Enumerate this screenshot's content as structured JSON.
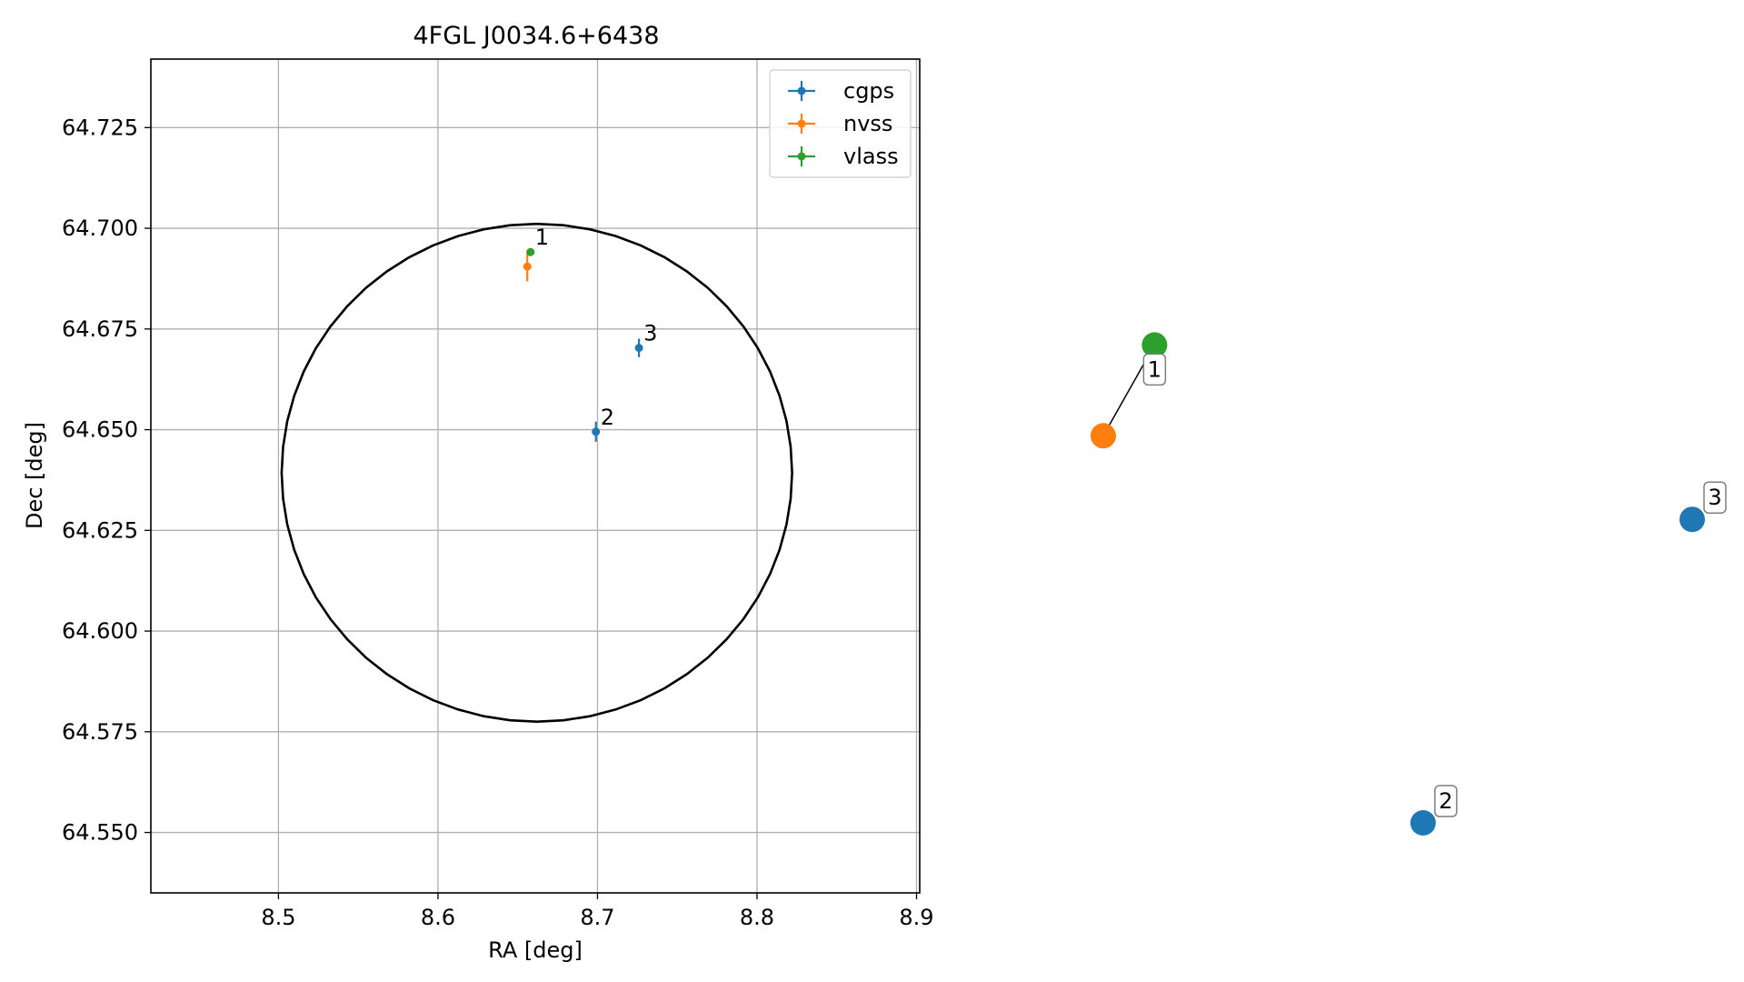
{
  "chart_data": [
    {
      "type": "scatter",
      "title": "4FGL J0034.6+6438",
      "xlabel": "RA [deg]",
      "ylabel": "Dec [deg]",
      "xlim": [
        8.42,
        8.902
      ],
      "ylim": [
        64.535,
        64.742
      ],
      "xticks": [
        8.5,
        8.6,
        8.7,
        8.8,
        8.9
      ],
      "xtick_labels": [
        "8.5",
        "8.6",
        "8.7",
        "8.8",
        "8.9"
      ],
      "yticks": [
        64.55,
        64.575,
        64.6,
        64.625,
        64.65,
        64.675,
        64.7,
        64.725
      ],
      "ytick_labels": [
        "64.550",
        "64.575",
        "64.600",
        "64.625",
        "64.650",
        "64.675",
        "64.700",
        "64.725"
      ],
      "grid": true,
      "legend_position": "top-right",
      "series": [
        {
          "name": "cgps",
          "color": "#1f77b4",
          "points": [
            {
              "x": 8.699,
              "y": 64.6495,
              "yerr": 0.0025,
              "label": "2"
            },
            {
              "x": 8.726,
              "y": 64.6703,
              "yerr": 0.0023,
              "label": "3"
            }
          ]
        },
        {
          "name": "nvss",
          "color": "#ff7f0e",
          "points": [
            {
              "x": 8.656,
              "y": 64.6905,
              "yerr": 0.0037,
              "label": ""
            }
          ]
        },
        {
          "name": "vlass",
          "color": "#2ca02c",
          "points": [
            {
              "x": 8.658,
              "y": 64.6941,
              "yerr": 0.0004,
              "label": "1"
            }
          ]
        }
      ],
      "ellipse": {
        "color": "#000000",
        "center": [
          8.662,
          64.6393
        ],
        "semi_x": 0.16,
        "semi_y": 0.0618
      }
    },
    {
      "type": "scatter",
      "axes_visible": false,
      "nodes": [
        {
          "color": "#2ca02c",
          "x": 0.087,
          "y": 0.8
        },
        {
          "color": "#ff7f0e",
          "x": 0.0,
          "y": 0.648
        },
        {
          "color": "#1f77b4",
          "x": 0.543,
          "y": 0.0,
          "label": "2"
        },
        {
          "color": "#1f77b4",
          "x": 1.0,
          "y": 0.508,
          "label": "3"
        }
      ],
      "edges": [
        [
          0,
          1,
          "1"
        ]
      ]
    }
  ]
}
